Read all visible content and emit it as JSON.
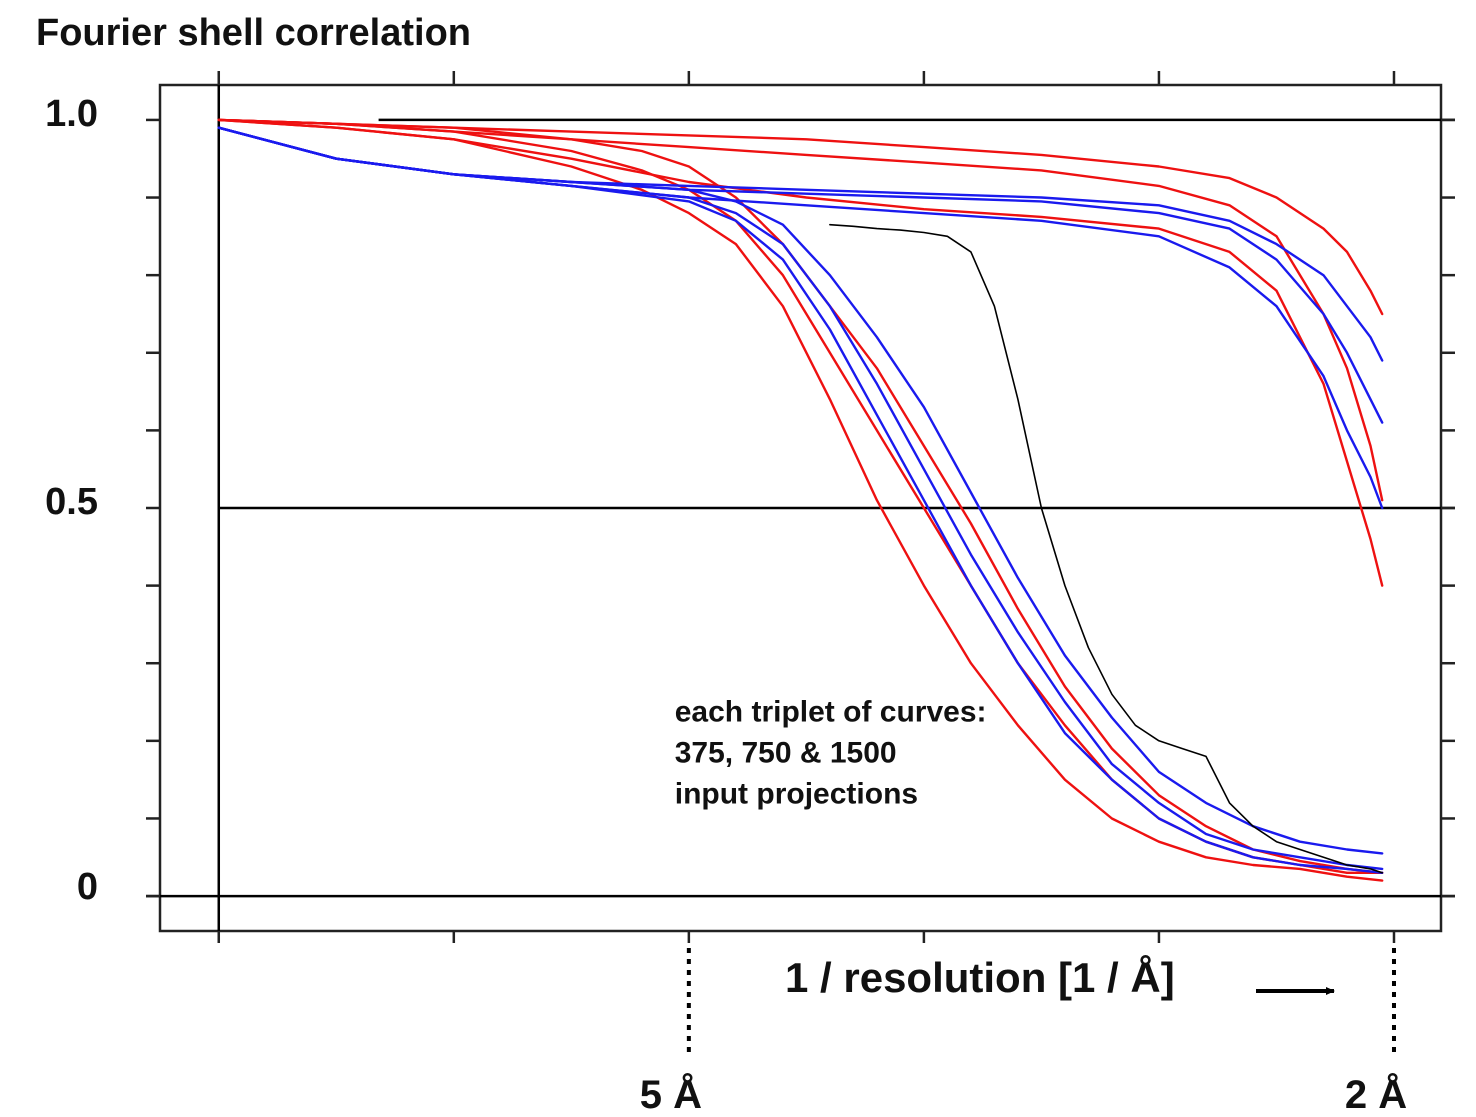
{
  "chart_data": {
    "type": "line",
    "title": "Fourier shell correlation",
    "xlabel": "1 / resolution [1 / Å]",
    "x_tick_marks": [
      0,
      0.1,
      0.2,
      0.3,
      0.4,
      0.5
    ],
    "x_resolution_markers": [
      {
        "x": 0.2,
        "label": "5 Å"
      },
      {
        "x": 0.5,
        "label": "2 Å"
      }
    ],
    "xlim": [
      -0.025,
      0.52
    ],
    "ylim": [
      -0.045,
      1.045
    ],
    "y_ticks": [
      0,
      0.1,
      0.2,
      0.3,
      0.4,
      0.5,
      0.6,
      0.7,
      0.8,
      0.9,
      1.0
    ],
    "y_tick_labels": [
      {
        "value": 1.0,
        "label": "1.0"
      },
      {
        "value": 0.5,
        "label": "0.5"
      },
      {
        "value": 0,
        "label": "0"
      }
    ],
    "reference_lines": [
      {
        "y": 1.0,
        "x_start": 0.068
      },
      {
        "y": 0.5,
        "x_start": 0
      },
      {
        "y": 0,
        "x_start": -0.025
      }
    ],
    "annotation": {
      "lines": [
        "each triplet of curves:",
        "375, 750 & 1500",
        "input projections"
      ],
      "x": 0.194,
      "y": 0.225
    },
    "colors": {
      "red": "#ee1111",
      "blue": "#1a1aee",
      "black": "#000000"
    },
    "series": [
      {
        "name": "red curve 1",
        "color": "red",
        "x": [
          0,
          0.05,
          0.1,
          0.15,
          0.2,
          0.25,
          0.3,
          0.35,
          0.4,
          0.43,
          0.45,
          0.47,
          0.48,
          0.49,
          0.495
        ],
        "y": [
          1.0,
          0.995,
          0.99,
          0.985,
          0.98,
          0.975,
          0.965,
          0.955,
          0.94,
          0.925,
          0.9,
          0.86,
          0.83,
          0.78,
          0.75
        ]
      },
      {
        "name": "red curve 2",
        "color": "red",
        "x": [
          0,
          0.05,
          0.1,
          0.15,
          0.2,
          0.25,
          0.3,
          0.35,
          0.4,
          0.43,
          0.45,
          0.47,
          0.48,
          0.49,
          0.495
        ],
        "y": [
          1.0,
          0.995,
          0.985,
          0.975,
          0.965,
          0.955,
          0.945,
          0.935,
          0.915,
          0.89,
          0.85,
          0.75,
          0.68,
          0.58,
          0.51
        ]
      },
      {
        "name": "red curve 3",
        "color": "red",
        "x": [
          0,
          0.05,
          0.1,
          0.15,
          0.2,
          0.25,
          0.3,
          0.35,
          0.4,
          0.43,
          0.45,
          0.47,
          0.48,
          0.49,
          0.495
        ],
        "y": [
          1.0,
          0.99,
          0.975,
          0.95,
          0.92,
          0.9,
          0.885,
          0.875,
          0.86,
          0.83,
          0.78,
          0.66,
          0.56,
          0.46,
          0.4
        ]
      },
      {
        "name": "red curve 4",
        "color": "red",
        "x": [
          0,
          0.05,
          0.1,
          0.15,
          0.18,
          0.2,
          0.22,
          0.24,
          0.26,
          0.28,
          0.3,
          0.32,
          0.34,
          0.36,
          0.38,
          0.4,
          0.42,
          0.44,
          0.46,
          0.48,
          0.495
        ],
        "y": [
          1.0,
          0.995,
          0.99,
          0.975,
          0.96,
          0.94,
          0.9,
          0.84,
          0.76,
          0.68,
          0.58,
          0.48,
          0.37,
          0.27,
          0.19,
          0.13,
          0.09,
          0.06,
          0.045,
          0.035,
          0.03
        ]
      },
      {
        "name": "red curve 5",
        "color": "red",
        "x": [
          0,
          0.05,
          0.1,
          0.15,
          0.18,
          0.2,
          0.22,
          0.24,
          0.26,
          0.28,
          0.3,
          0.32,
          0.34,
          0.36,
          0.38,
          0.4,
          0.42,
          0.44,
          0.46,
          0.48,
          0.495
        ],
        "y": [
          1.0,
          0.995,
          0.985,
          0.96,
          0.935,
          0.91,
          0.87,
          0.8,
          0.7,
          0.6,
          0.5,
          0.4,
          0.3,
          0.22,
          0.15,
          0.1,
          0.07,
          0.05,
          0.04,
          0.03,
          0.03
        ]
      },
      {
        "name": "red curve 6",
        "color": "red",
        "x": [
          0,
          0.05,
          0.1,
          0.15,
          0.18,
          0.2,
          0.22,
          0.24,
          0.26,
          0.28,
          0.3,
          0.32,
          0.34,
          0.36,
          0.38,
          0.4,
          0.42,
          0.44,
          0.46,
          0.48,
          0.495
        ],
        "y": [
          1.0,
          0.99,
          0.975,
          0.94,
          0.91,
          0.88,
          0.84,
          0.76,
          0.64,
          0.51,
          0.4,
          0.3,
          0.22,
          0.15,
          0.1,
          0.07,
          0.05,
          0.04,
          0.035,
          0.025,
          0.02
        ]
      },
      {
        "name": "blue curve 1",
        "color": "blue",
        "x": [
          0,
          0.05,
          0.1,
          0.15,
          0.2,
          0.25,
          0.3,
          0.35,
          0.4,
          0.43,
          0.45,
          0.47,
          0.48,
          0.49,
          0.495
        ],
        "y": [
          0.99,
          0.95,
          0.93,
          0.92,
          0.915,
          0.91,
          0.905,
          0.9,
          0.89,
          0.87,
          0.84,
          0.8,
          0.76,
          0.72,
          0.69
        ]
      },
      {
        "name": "blue curve 2",
        "color": "blue",
        "x": [
          0,
          0.05,
          0.1,
          0.15,
          0.2,
          0.25,
          0.3,
          0.35,
          0.4,
          0.43,
          0.45,
          0.47,
          0.48,
          0.49,
          0.495
        ],
        "y": [
          0.99,
          0.95,
          0.93,
          0.92,
          0.91,
          0.905,
          0.9,
          0.895,
          0.88,
          0.86,
          0.82,
          0.75,
          0.7,
          0.64,
          0.61
        ]
      },
      {
        "name": "blue curve 3",
        "color": "blue",
        "x": [
          0,
          0.05,
          0.1,
          0.15,
          0.2,
          0.25,
          0.3,
          0.35,
          0.4,
          0.43,
          0.45,
          0.47,
          0.48,
          0.49,
          0.495
        ],
        "y": [
          0.99,
          0.95,
          0.93,
          0.915,
          0.9,
          0.89,
          0.88,
          0.87,
          0.85,
          0.81,
          0.76,
          0.67,
          0.6,
          0.54,
          0.5
        ]
      },
      {
        "name": "blue curve 4",
        "color": "blue",
        "x": [
          0,
          0.05,
          0.1,
          0.15,
          0.2,
          0.22,
          0.24,
          0.26,
          0.28,
          0.3,
          0.32,
          0.34,
          0.36,
          0.38,
          0.4,
          0.42,
          0.44,
          0.46,
          0.48,
          0.495
        ],
        "y": [
          0.99,
          0.95,
          0.93,
          0.92,
          0.91,
          0.895,
          0.865,
          0.8,
          0.72,
          0.63,
          0.52,
          0.41,
          0.31,
          0.23,
          0.16,
          0.12,
          0.09,
          0.07,
          0.06,
          0.055
        ]
      },
      {
        "name": "blue curve 5",
        "color": "blue",
        "x": [
          0,
          0.05,
          0.1,
          0.15,
          0.2,
          0.22,
          0.24,
          0.26,
          0.28,
          0.3,
          0.32,
          0.34,
          0.36,
          0.38,
          0.4,
          0.42,
          0.44,
          0.46,
          0.48,
          0.495
        ],
        "y": [
          0.99,
          0.95,
          0.93,
          0.915,
          0.9,
          0.88,
          0.84,
          0.76,
          0.66,
          0.55,
          0.44,
          0.34,
          0.25,
          0.17,
          0.12,
          0.08,
          0.06,
          0.05,
          0.04,
          0.035
        ]
      },
      {
        "name": "blue curve 6",
        "color": "blue",
        "x": [
          0,
          0.05,
          0.1,
          0.15,
          0.2,
          0.22,
          0.24,
          0.26,
          0.28,
          0.3,
          0.32,
          0.34,
          0.36,
          0.38,
          0.4,
          0.42,
          0.44,
          0.46,
          0.48,
          0.495
        ],
        "y": [
          0.99,
          0.95,
          0.93,
          0.915,
          0.895,
          0.87,
          0.82,
          0.73,
          0.62,
          0.51,
          0.4,
          0.3,
          0.21,
          0.15,
          0.1,
          0.07,
          0.05,
          0.04,
          0.035,
          0.03
        ]
      },
      {
        "name": "black trace",
        "color": "black",
        "x": [
          0.26,
          0.27,
          0.28,
          0.29,
          0.3,
          0.31,
          0.32,
          0.33,
          0.34,
          0.35,
          0.36,
          0.37,
          0.38,
          0.39,
          0.4,
          0.41,
          0.42,
          0.43,
          0.44,
          0.45,
          0.46,
          0.47,
          0.48,
          0.49,
          0.495
        ],
        "y": [
          0.865,
          0.863,
          0.86,
          0.858,
          0.855,
          0.85,
          0.83,
          0.76,
          0.64,
          0.5,
          0.4,
          0.32,
          0.26,
          0.22,
          0.2,
          0.19,
          0.18,
          0.12,
          0.09,
          0.07,
          0.06,
          0.05,
          0.04,
          0.035,
          0.03
        ]
      }
    ]
  }
}
